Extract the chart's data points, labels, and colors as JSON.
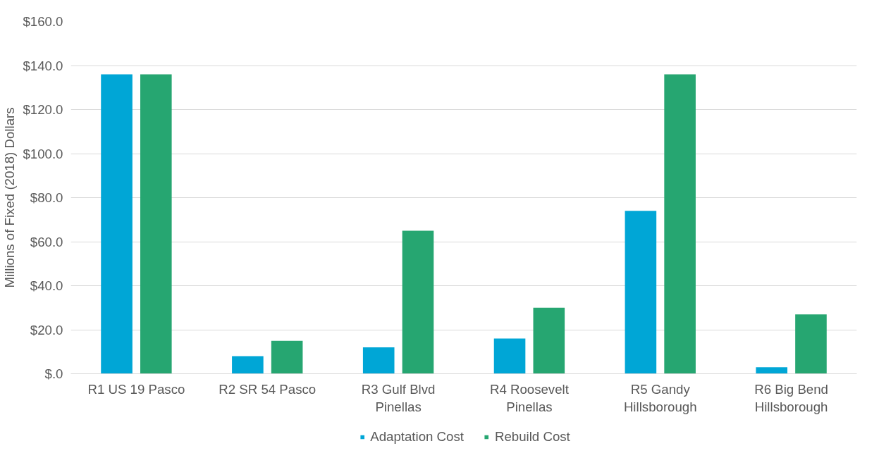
{
  "chart_data": {
    "type": "bar",
    "ylabel": "Millions of Fixed (2018) Dollars",
    "categories": [
      "R1 US 19 Pasco",
      "R2 SR 54 Pasco",
      "R3 Gulf Blvd Pinellas",
      "R4 Roosevelt Pinellas",
      "R5 Gandy Hillsborough",
      "R6 Big Bend Hillsborough"
    ],
    "series": [
      {
        "name": "Adaptation Cost",
        "color": "#00a6d6",
        "values": [
          136,
          8,
          12,
          16,
          74,
          3
        ]
      },
      {
        "name": "Rebuild Cost",
        "color": "#26a671",
        "values": [
          136,
          15,
          65,
          30,
          136,
          27
        ]
      }
    ],
    "ylim": [
      0,
      160
    ],
    "yticks": [
      {
        "value": 0,
        "label": "$.0"
      },
      {
        "value": 20,
        "label": "$20.0"
      },
      {
        "value": 40,
        "label": "$40.0"
      },
      {
        "value": 60,
        "label": "$60.0"
      },
      {
        "value": 80,
        "label": "$80.0"
      },
      {
        "value": 100,
        "label": "$100.0"
      },
      {
        "value": 120,
        "label": "$120.0"
      },
      {
        "value": 140,
        "label": "$140.0"
      },
      {
        "value": 160,
        "label": "$160.0"
      }
    ],
    "grid": "y",
    "legend": "bottom"
  }
}
